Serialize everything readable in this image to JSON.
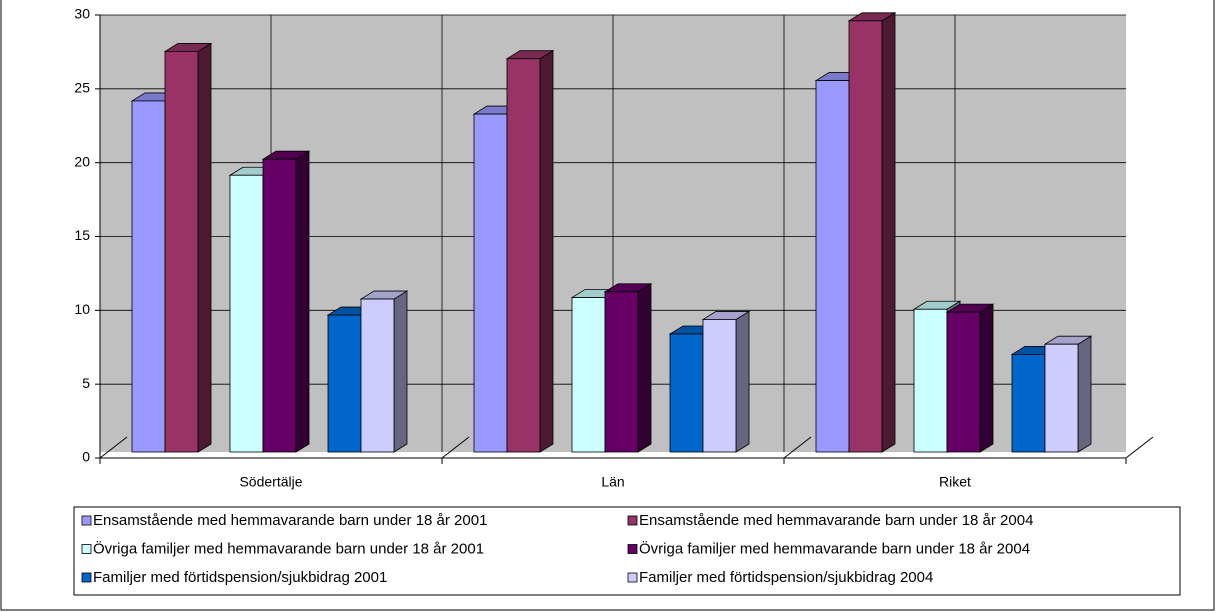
{
  "chart_data": {
    "type": "bar3d",
    "categories": [
      "Södertälje",
      "Län",
      "Riket"
    ],
    "series": [
      {
        "name": "Ensamstående med hemmavarande barn under 18 år 2001",
        "color": "#9999ff",
        "values": [
          24.1,
          23.2,
          25.5
        ]
      },
      {
        "name": "Ensamstående med hemmavarande barn under 18 år 2004",
        "color": "#993366",
        "values": [
          27.5,
          27.0,
          29.6
        ]
      },
      {
        "name": "Övriga familjer med hemmavarande barn under 18 år 2001",
        "color": "#ccffff",
        "values": [
          19.0,
          10.6,
          9.8
        ]
      },
      {
        "name": "Övriga familjer med hemmavarande barn under 18 år 2004",
        "color": "#660066",
        "values": [
          20.1,
          11.0,
          9.6
        ]
      },
      {
        "name": "Familjer med förtidspension/sjukbidrag 2001",
        "color": "#0066cc",
        "values": [
          9.4,
          8.1,
          6.7
        ]
      },
      {
        "name": "Familjer med förtidspension/sjukbidrag 2004",
        "color": "#ccccff",
        "values": [
          10.5,
          9.1,
          7.4
        ]
      }
    ],
    "ylim": [
      0,
      30
    ],
    "yticks": [
      0,
      5,
      10,
      15,
      20,
      25,
      30
    ],
    "grid": true,
    "legend": "bottom"
  }
}
